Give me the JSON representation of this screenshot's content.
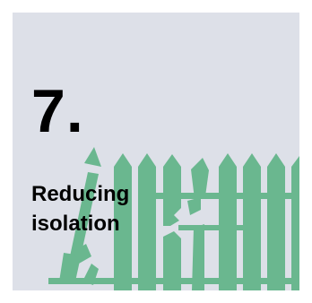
{
  "tile": {
    "number": "7.",
    "title_lines": [
      "Reducing",
      "isolation"
    ],
    "background_color": "#dde0e8",
    "fence_color": "#6ab78f",
    "illustration_icon": "broken-picket-fence-icon"
  }
}
